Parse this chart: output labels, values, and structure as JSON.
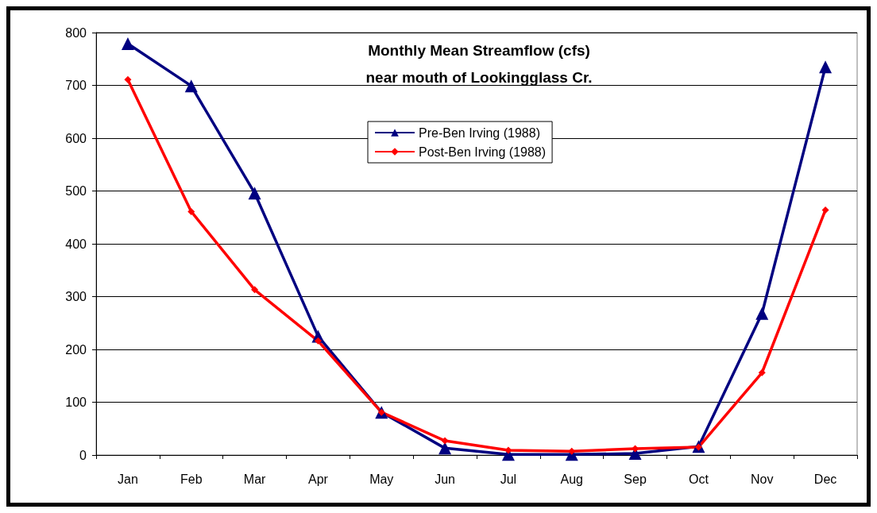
{
  "chart_data": {
    "type": "line",
    "title": "Monthly Mean Streamflow (cfs)\nnear mouth of Lookingglass Cr.",
    "categories": [
      "Jan",
      "Feb",
      "Mar",
      "Apr",
      "May",
      "Jun",
      "Jul",
      "Aug",
      "Sep",
      "Oct",
      "Nov",
      "Dec"
    ],
    "series": [
      {
        "name": "Pre-Ben Irving (1988)",
        "color": "#000080",
        "marker": "triangle",
        "values": [
          779,
          699,
          496,
          225,
          81,
          13,
          1,
          1,
          3,
          16,
          268,
          735
        ]
      },
      {
        "name": "Post-Ben Irving (1988)",
        "color": "#ff0000",
        "marker": "diamond",
        "values": [
          711,
          461,
          313,
          216,
          81,
          27,
          9,
          7,
          12,
          15,
          156,
          464
        ]
      }
    ],
    "ylim": [
      0,
      800
    ],
    "yticks": [
      0,
      100,
      200,
      300,
      400,
      500,
      600,
      700,
      800
    ],
    "grid": "y",
    "legend": "top"
  }
}
